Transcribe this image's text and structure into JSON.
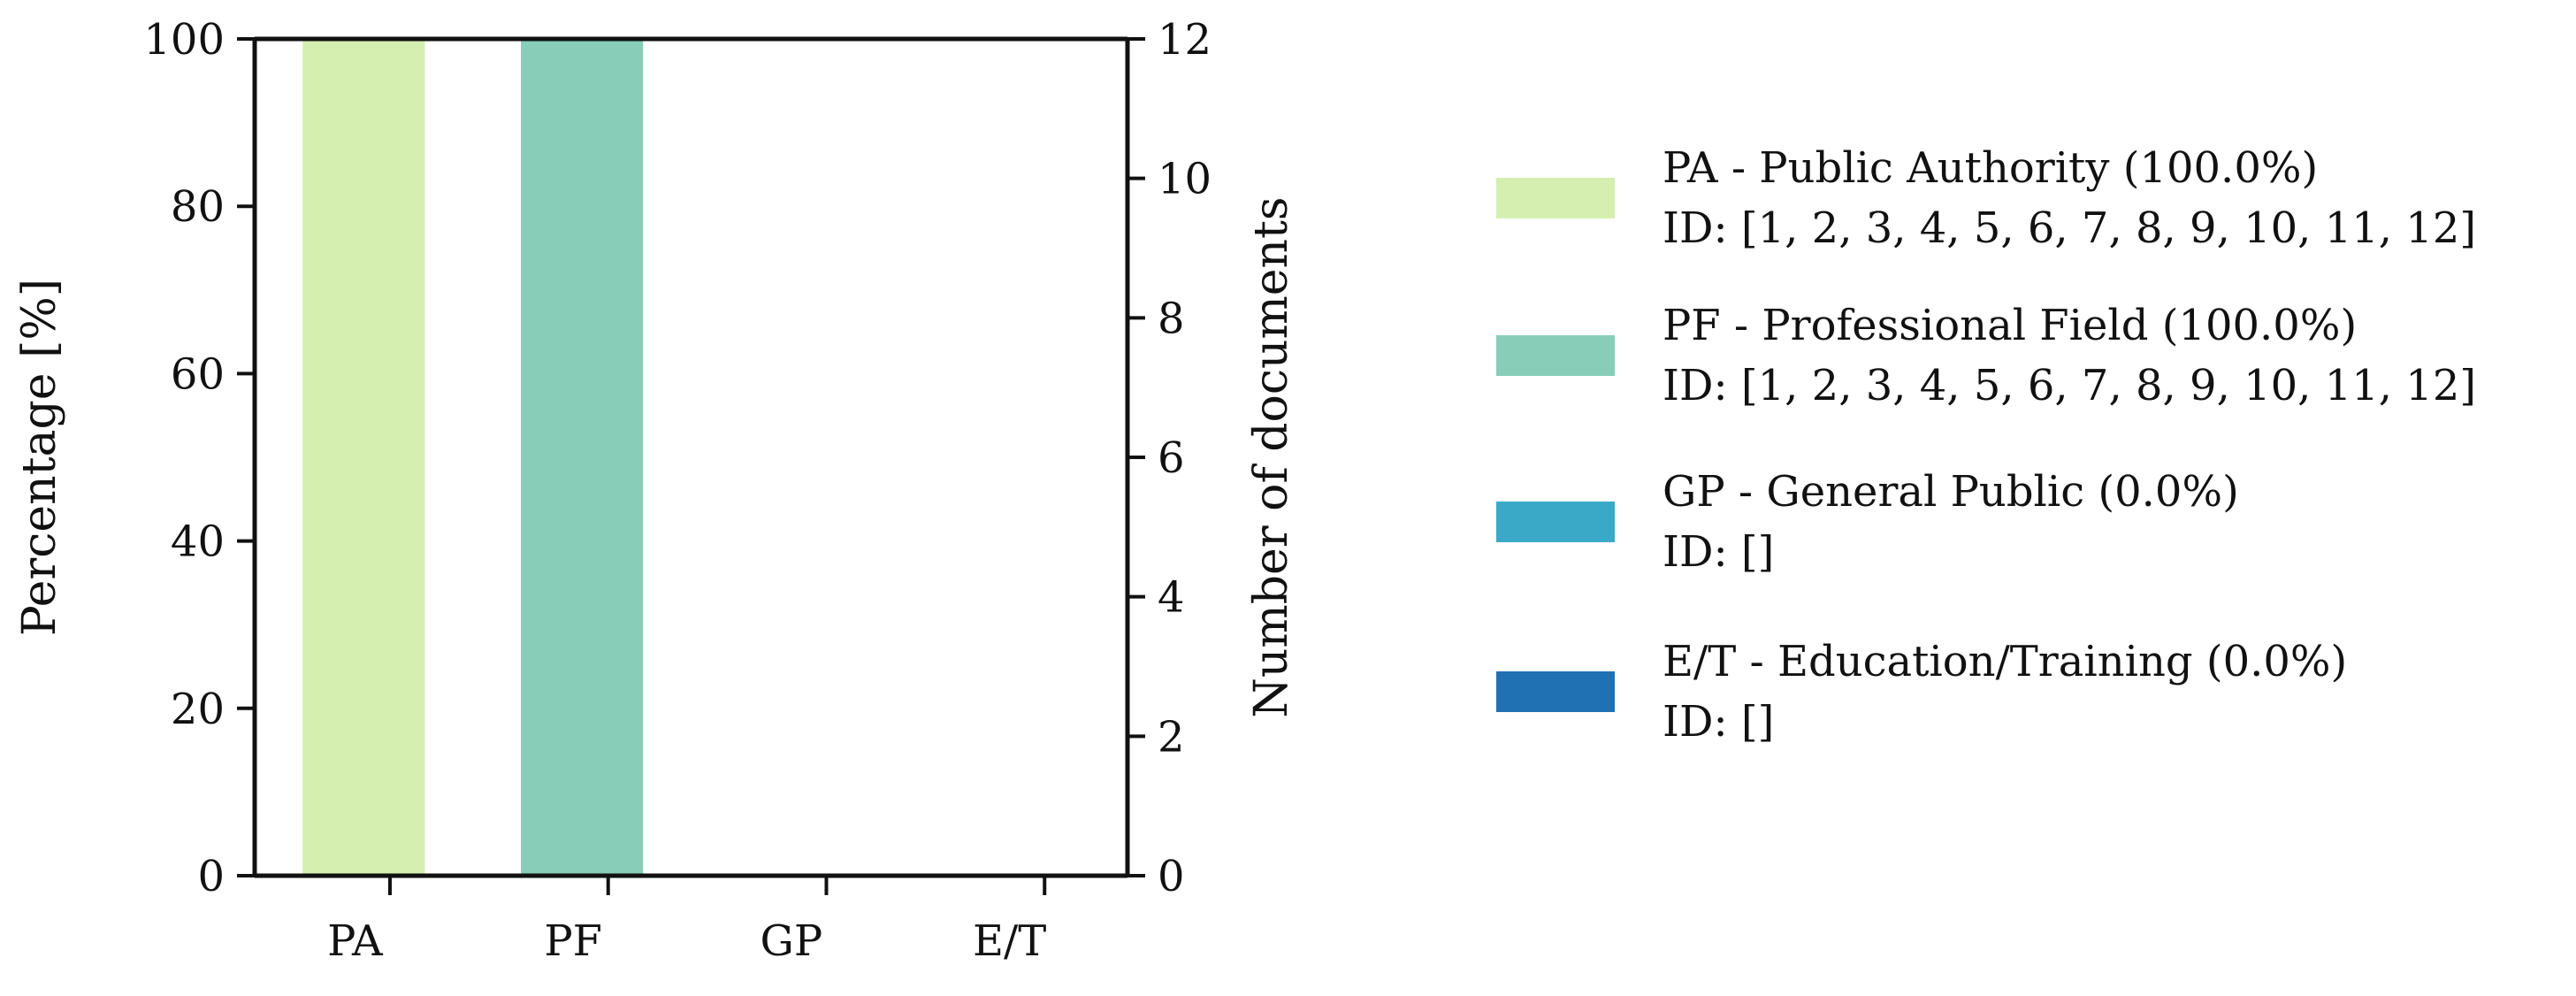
{
  "chart_data": {
    "type": "bar",
    "categories": [
      "PA",
      "PF",
      "GP",
      "E/T"
    ],
    "values": [
      100,
      100,
      0,
      0
    ],
    "colors": [
      "#d4efb0",
      "#87cdb7",
      "#3aa9c7",
      "#2070b4"
    ],
    "ylabel": "Percentage [%]",
    "ylim": [
      0,
      100
    ],
    "yticks": [
      "0",
      "20",
      "40",
      "60",
      "80",
      "100"
    ],
    "y2label": "Number of documents",
    "y2lim": [
      0,
      12
    ],
    "y2ticks": [
      "0",
      "2",
      "4",
      "6",
      "8",
      "10",
      "12"
    ],
    "grid": false,
    "legend_position": "right",
    "legend": [
      {
        "line1": "PA - Public Authority (100.0%)",
        "line2": "ID: [1, 2, 3, 4, 5, 6, 7, 8, 9, 10, 11, 12]",
        "color": "#d4efb0"
      },
      {
        "line1": "PF - Professional Field (100.0%)",
        "line2": "ID: [1, 2, 3, 4, 5, 6, 7, 8, 9, 10, 11, 12]",
        "color": "#87cdb7"
      },
      {
        "line1": "GP - General Public (0.0%)",
        "line2": "ID: []",
        "color": "#3aa9c7"
      },
      {
        "line1": "E/T - Education/Training (0.0%)",
        "line2": "ID: []",
        "color": "#2070b4"
      }
    ]
  }
}
